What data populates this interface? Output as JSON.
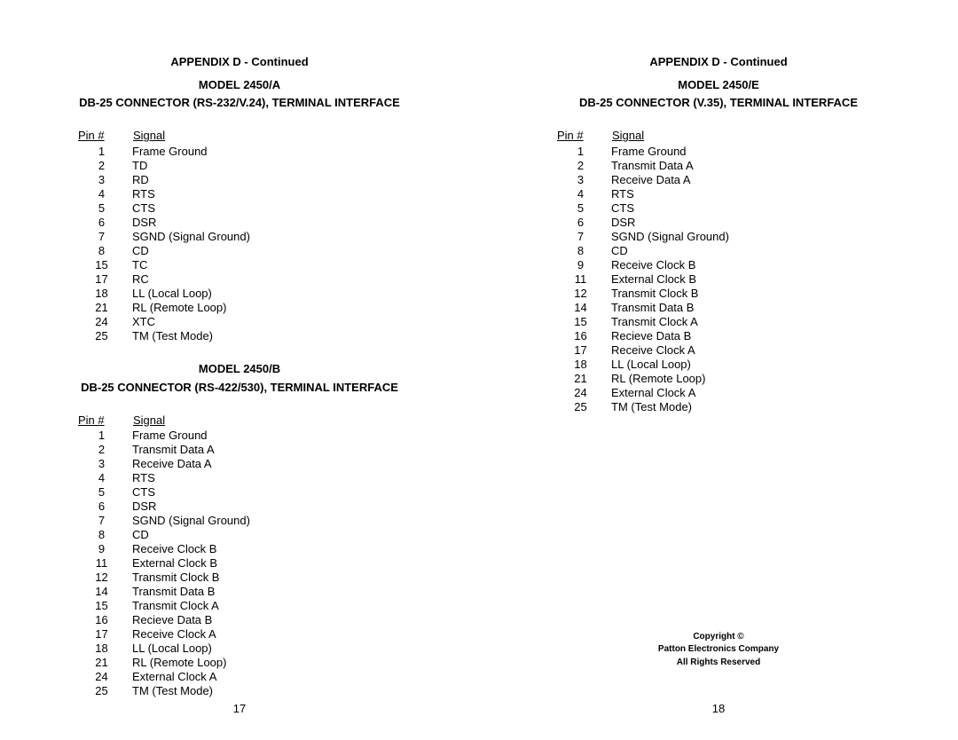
{
  "page": {
    "background_color": "#ffffff",
    "text_color": "#000000",
    "font_family": "Arial, Helvetica, sans-serif",
    "base_fontsize": 13,
    "heading_fontsize": 13,
    "copyright_fontsize": 10
  },
  "left": {
    "appendix": "APPENDIX D - Continued",
    "sections": [
      {
        "model": "MODEL 2450/A",
        "subtitle": "DB-25 CONNECTOR (RS-232/V.24), TERMINAL INTERFACE",
        "headers": {
          "pin": "Pin #",
          "signal": "Signal"
        },
        "rows": [
          {
            "pin": "1",
            "signal": "Frame Ground"
          },
          {
            "pin": "2",
            "signal": "TD"
          },
          {
            "pin": "3",
            "signal": "RD"
          },
          {
            "pin": "4",
            "signal": "RTS"
          },
          {
            "pin": "5",
            "signal": "CTS"
          },
          {
            "pin": "6",
            "signal": "DSR"
          },
          {
            "pin": "7",
            "signal": "SGND (Signal Ground)"
          },
          {
            "pin": "8",
            "signal": "CD"
          },
          {
            "pin": "15",
            "signal": "TC"
          },
          {
            "pin": "17",
            "signal": "RC"
          },
          {
            "pin": "18",
            "signal": "LL (Local Loop)"
          },
          {
            "pin": "21",
            "signal": "RL (Remote Loop)"
          },
          {
            "pin": "24",
            "signal": "XTC"
          },
          {
            "pin": "25",
            "signal": "TM (Test Mode)"
          }
        ]
      },
      {
        "model": "MODEL 2450/B",
        "subtitle": "DB-25 CONNECTOR (RS-422/530), TERMINAL INTERFACE",
        "headers": {
          "pin": "Pin #",
          "signal": "Signal"
        },
        "rows": [
          {
            "pin": "1",
            "signal": "Frame Ground"
          },
          {
            "pin": "2",
            "signal": "Transmit Data A"
          },
          {
            "pin": "3",
            "signal": "Receive Data A"
          },
          {
            "pin": "4",
            "signal": "RTS"
          },
          {
            "pin": "5",
            "signal": "CTS"
          },
          {
            "pin": "6",
            "signal": "DSR"
          },
          {
            "pin": "7",
            "signal": "SGND (Signal Ground)"
          },
          {
            "pin": "8",
            "signal": "CD"
          },
          {
            "pin": "9",
            "signal": "Receive Clock B"
          },
          {
            "pin": "11",
            "signal": "External Clock B"
          },
          {
            "pin": "12",
            "signal": "Transmit Clock B"
          },
          {
            "pin": "14",
            "signal": "Transmit Data B"
          },
          {
            "pin": "15",
            "signal": "Transmit Clock A"
          },
          {
            "pin": "16",
            "signal": "Recieve Data B"
          },
          {
            "pin": "17",
            "signal": "Receive Clock A"
          },
          {
            "pin": "18",
            "signal": "LL (Local Loop)"
          },
          {
            "pin": "21",
            "signal": "RL (Remote Loop)"
          },
          {
            "pin": "24",
            "signal": "External Clock A"
          },
          {
            "pin": "25",
            "signal": "TM (Test Mode)"
          }
        ]
      }
    ],
    "page_number": "17"
  },
  "right": {
    "appendix": "APPENDIX D - Continued",
    "sections": [
      {
        "model": "MODEL 2450/E",
        "subtitle": "DB-25 CONNECTOR (V.35), TERMINAL INTERFACE",
        "headers": {
          "pin": "Pin #",
          "signal": "Signal"
        },
        "rows": [
          {
            "pin": "1",
            "signal": "Frame Ground"
          },
          {
            "pin": "2",
            "signal": "Transmit Data A"
          },
          {
            "pin": "3",
            "signal": "Receive Data A"
          },
          {
            "pin": "4",
            "signal": "RTS"
          },
          {
            "pin": "5",
            "signal": "CTS"
          },
          {
            "pin": "6",
            "signal": "DSR"
          },
          {
            "pin": "7",
            "signal": "SGND (Signal Ground)"
          },
          {
            "pin": "8",
            "signal": "CD"
          },
          {
            "pin": "9",
            "signal": "Receive Clock B"
          },
          {
            "pin": "11",
            "signal": "External Clock B"
          },
          {
            "pin": "12",
            "signal": "Transmit Clock B"
          },
          {
            "pin": "14",
            "signal": "Transmit Data B"
          },
          {
            "pin": "15",
            "signal": "Transmit Clock A"
          },
          {
            "pin": "16",
            "signal": "Recieve Data B"
          },
          {
            "pin": "17",
            "signal": "Receive Clock A"
          },
          {
            "pin": "18",
            "signal": "LL (Local Loop)"
          },
          {
            "pin": "21",
            "signal": "RL (Remote Loop)"
          },
          {
            "pin": "24",
            "signal": "External Clock A"
          },
          {
            "pin": "25",
            "signal": "TM (Test Mode)"
          }
        ]
      }
    ],
    "copyright": {
      "line1": "Copyright ©",
      "line2": "Patton Electronics Company",
      "line3": "All Rights Reserved"
    },
    "page_number": "18"
  }
}
